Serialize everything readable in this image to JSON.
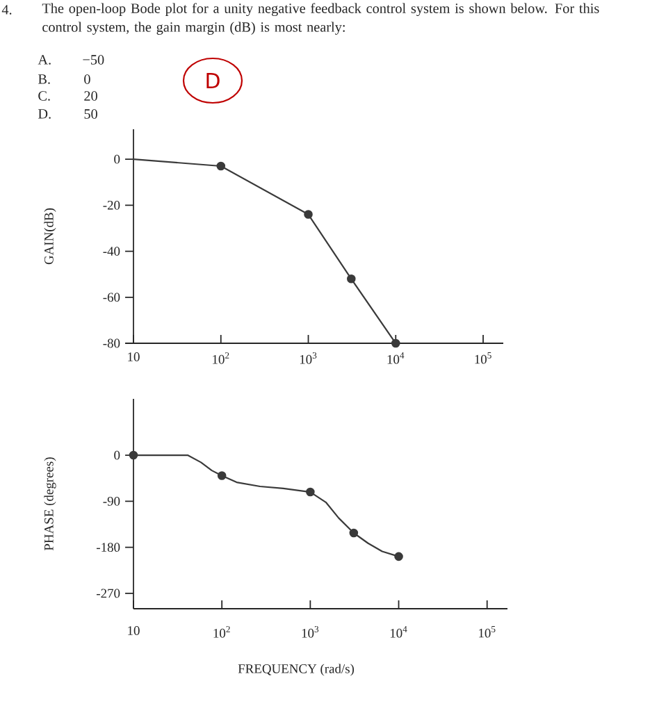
{
  "chart_data": [
    {
      "type": "line",
      "title": "The open-loop Bode plot for a unity negative feedback control system is shown below. For this control system, the gain margin (dB) is most nearly:",
      "annotations": [
        "4.",
        "A.",
        "−50",
        "B.",
        "0",
        "C.",
        "20",
        "D.",
        "50",
        "D"
      ],
      "ylabel": "GAIN(dB)",
      "log": "x",
      "xlim": [
        10,
        170000
      ],
      "xticks": [
        10,
        {
          "value": 100,
          "label": "10$^{2}$"
        },
        {
          "value": 1000,
          "label": "10$^{3}$"
        },
        {
          "value": 10000,
          "label": "10$^{4}$"
        },
        {
          "value": 100000,
          "label": "10$^{5}$"
        }
      ],
      "ylim": [
        -80,
        13
      ],
      "yticks": [
        0,
        -20,
        -40,
        -60,
        -80
      ],
      "series": [
        {
          "color": "#3a3a3a",
          "marker": "none",
          "x": [
            10,
            100,
            1000,
            3100,
            10000
          ],
          "values": [
            0,
            -3,
            -24,
            -52,
            -80
          ]
        },
        {
          "type": "scatter",
          "color": "#3a3a3a",
          "marker": "circle",
          "x": [
            100,
            1000,
            3100,
            10000
          ],
          "values": [
            -3,
            -24,
            -52,
            -80
          ]
        }
      ]
    },
    {
      "type": "line",
      "xlabel": "FREQUENCY (rad/s)",
      "ylabel": "PHASE (degrees)",
      "log": "x",
      "xlim": [
        10,
        170000
      ],
      "xticks": [
        10,
        {
          "value": 100,
          "label": "10$^{2}$"
        },
        {
          "value": 1000,
          "label": "10$^{3}$"
        },
        {
          "value": 10000,
          "label": "10$^{4}$"
        },
        {
          "value": 100000,
          "label": "10$^{5}$"
        }
      ],
      "ylim": [
        -300,
        110
      ],
      "yticks": [
        0,
        -90,
        -180,
        -270
      ],
      "series": [
        {
          "color": "#3a3a3a",
          "marker": "none",
          "x": [
            10,
            41,
            58,
            77,
            100,
            147,
            270,
            495,
            1000,
            1500,
            2100,
            3100,
            4500,
            6500,
            10000
          ],
          "values": [
            0,
            0,
            -14,
            -30,
            -40,
            -53,
            -61,
            -65,
            -72,
            -92,
            -123,
            -152,
            -172,
            -188,
            -198
          ]
        },
        {
          "type": "scatter",
          "color": "#3a3a3a",
          "marker": "circle",
          "x": [
            10,
            100,
            1000,
            3100,
            10000
          ],
          "values": [
            0,
            -40,
            -72,
            -152,
            -198
          ]
        }
      ]
    }
  ]
}
